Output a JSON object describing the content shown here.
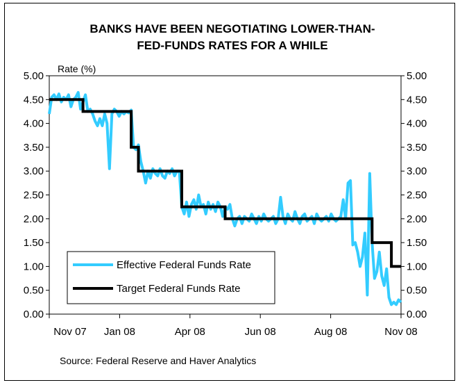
{
  "chart_data": {
    "type": "line",
    "title_line1": "BANKS HAVE BEEN NEGOTIATING LOWER-THAN-",
    "title_line2": "FED-FUNDS RATES FOR A WHILE",
    "ylabel": "Rate (%)",
    "ylim": [
      0,
      5
    ],
    "yticks": [
      "0.00",
      "0.50",
      "1.00",
      "1.50",
      "2.00",
      "2.50",
      "3.00",
      "3.50",
      "4.00",
      "4.50",
      "5.00"
    ],
    "xticks": [
      "Nov 07",
      "Jan 08",
      "Apr 08",
      "Jun 08",
      "Aug 08",
      "Nov 08"
    ],
    "source": "Source: Federal Reserve and Haver Analytics",
    "colors": {
      "effective": "#33ccff",
      "target": "#000000"
    },
    "legend_position": "bottom-left",
    "series": [
      {
        "name": "Effective Federal Funds Rate",
        "points": [
          [
            0,
            4.2
          ],
          [
            1,
            4.55
          ],
          [
            2,
            4.6
          ],
          [
            3,
            4.5
          ],
          [
            4,
            4.62
          ],
          [
            5,
            4.45
          ],
          [
            6,
            4.55
          ],
          [
            7,
            4.5
          ],
          [
            8,
            4.6
          ],
          [
            9,
            4.35
          ],
          [
            10,
            4.5
          ],
          [
            11,
            4.55
          ],
          [
            12,
            4.65
          ],
          [
            13,
            4.3
          ],
          [
            14,
            4.45
          ],
          [
            15,
            4.6
          ],
          [
            16,
            4.25
          ],
          [
            17,
            4.3
          ],
          [
            18,
            4.2
          ],
          [
            19,
            4.05
          ],
          [
            20,
            3.95
          ],
          [
            21,
            4.1
          ],
          [
            22,
            3.95
          ],
          [
            23,
            4.2
          ],
          [
            24,
            4.0
          ],
          [
            25,
            3.05
          ],
          [
            26,
            4.2
          ],
          [
            27,
            4.3
          ],
          [
            28,
            4.25
          ],
          [
            29,
            4.15
          ],
          [
            30,
            4.25
          ],
          [
            31,
            4.2
          ],
          [
            32,
            4.25
          ],
          [
            33,
            4.22
          ],
          [
            34,
            4.28
          ],
          [
            35,
            3.5
          ],
          [
            36,
            3.45
          ],
          [
            37,
            3.55
          ],
          [
            38,
            3.2
          ],
          [
            39,
            3.0
          ],
          [
            40,
            2.75
          ],
          [
            41,
            3.0
          ],
          [
            42,
            2.85
          ],
          [
            43,
            3.05
          ],
          [
            44,
            2.95
          ],
          [
            45,
            2.9
          ],
          [
            46,
            3.05
          ],
          [
            47,
            2.9
          ],
          [
            48,
            2.85
          ],
          [
            49,
            3.0
          ],
          [
            50,
            2.95
          ],
          [
            51,
            3.05
          ],
          [
            52,
            2.9
          ],
          [
            53,
            3.0
          ],
          [
            54,
            3.0
          ],
          [
            55,
            2.25
          ],
          [
            56,
            2.1
          ],
          [
            57,
            2.35
          ],
          [
            58,
            2.05
          ],
          [
            59,
            2.3
          ],
          [
            60,
            2.4
          ],
          [
            61,
            2.2
          ],
          [
            62,
            2.5
          ],
          [
            63,
            2.25
          ],
          [
            64,
            2.3
          ],
          [
            65,
            2.1
          ],
          [
            66,
            2.35
          ],
          [
            67,
            2.2
          ],
          [
            68,
            2.3
          ],
          [
            69,
            2.15
          ],
          [
            70,
            2.35
          ],
          [
            71,
            2.25
          ],
          [
            72,
            2.05
          ],
          [
            73,
            2.25
          ],
          [
            74,
            2.2
          ],
          [
            75,
            2.3
          ],
          [
            76,
            2.0
          ],
          [
            77,
            1.85
          ],
          [
            78,
            2.0
          ],
          [
            79,
            2.05
          ],
          [
            80,
            1.9
          ],
          [
            81,
            2.05
          ],
          [
            82,
            2.0
          ],
          [
            83,
            1.95
          ],
          [
            84,
            2.1
          ],
          [
            85,
            2.0
          ],
          [
            86,
            1.9
          ],
          [
            87,
            2.05
          ],
          [
            88,
            1.95
          ],
          [
            89,
            2.1
          ],
          [
            90,
            2.0
          ],
          [
            91,
            1.95
          ],
          [
            92,
            2.0
          ],
          [
            93,
            2.05
          ],
          [
            94,
            1.9
          ],
          [
            95,
            2.0
          ],
          [
            96,
            2.45
          ],
          [
            97,
            2.05
          ],
          [
            98,
            1.9
          ],
          [
            99,
            2.1
          ],
          [
            100,
            2.0
          ],
          [
            101,
            1.95
          ],
          [
            102,
            2.15
          ],
          [
            103,
            2.0
          ],
          [
            104,
            1.9
          ],
          [
            105,
            2.05
          ],
          [
            106,
            2.1
          ],
          [
            107,
            1.95
          ],
          [
            108,
            2.0
          ],
          [
            109,
            2.05
          ],
          [
            110,
            1.9
          ],
          [
            111,
            2.1
          ],
          [
            112,
            2.0
          ],
          [
            113,
            1.95
          ],
          [
            114,
            2.0
          ],
          [
            115,
            2.05
          ],
          [
            116,
            1.95
          ],
          [
            117,
            2.1
          ],
          [
            118,
            2.0
          ],
          [
            119,
            1.95
          ],
          [
            120,
            2.0
          ],
          [
            121,
            2.05
          ],
          [
            122,
            2.4
          ],
          [
            123,
            2.0
          ],
          [
            124,
            2.75
          ],
          [
            125,
            2.8
          ],
          [
            126,
            1.45
          ],
          [
            127,
            1.5
          ],
          [
            128,
            1.3
          ],
          [
            129,
            1.0
          ],
          [
            130,
            1.2
          ],
          [
            131,
            1.7
          ],
          [
            132,
            0.4
          ],
          [
            133,
            2.95
          ],
          [
            134,
            1.5
          ],
          [
            135,
            0.75
          ],
          [
            136,
            0.9
          ],
          [
            137,
            1.3
          ],
          [
            138,
            0.8
          ],
          [
            139,
            0.6
          ],
          [
            140,
            0.95
          ],
          [
            141,
            0.35
          ],
          [
            142,
            0.2
          ],
          [
            143,
            0.25
          ],
          [
            144,
            0.2
          ],
          [
            145,
            0.3
          ],
          [
            146,
            0.25
          ]
        ]
      },
      {
        "name": "Target Federal Funds Rate",
        "points": [
          [
            0,
            4.5
          ],
          [
            14,
            4.5
          ],
          [
            14,
            4.25
          ],
          [
            34,
            4.25
          ],
          [
            34,
            3.5
          ],
          [
            37,
            3.5
          ],
          [
            37,
            3.0
          ],
          [
            55,
            3.0
          ],
          [
            55,
            2.25
          ],
          [
            73,
            2.25
          ],
          [
            73,
            2.0
          ],
          [
            134,
            2.0
          ],
          [
            134,
            1.5
          ],
          [
            142,
            1.5
          ],
          [
            142,
            1.0
          ],
          [
            146,
            1.0
          ]
        ]
      }
    ]
  }
}
